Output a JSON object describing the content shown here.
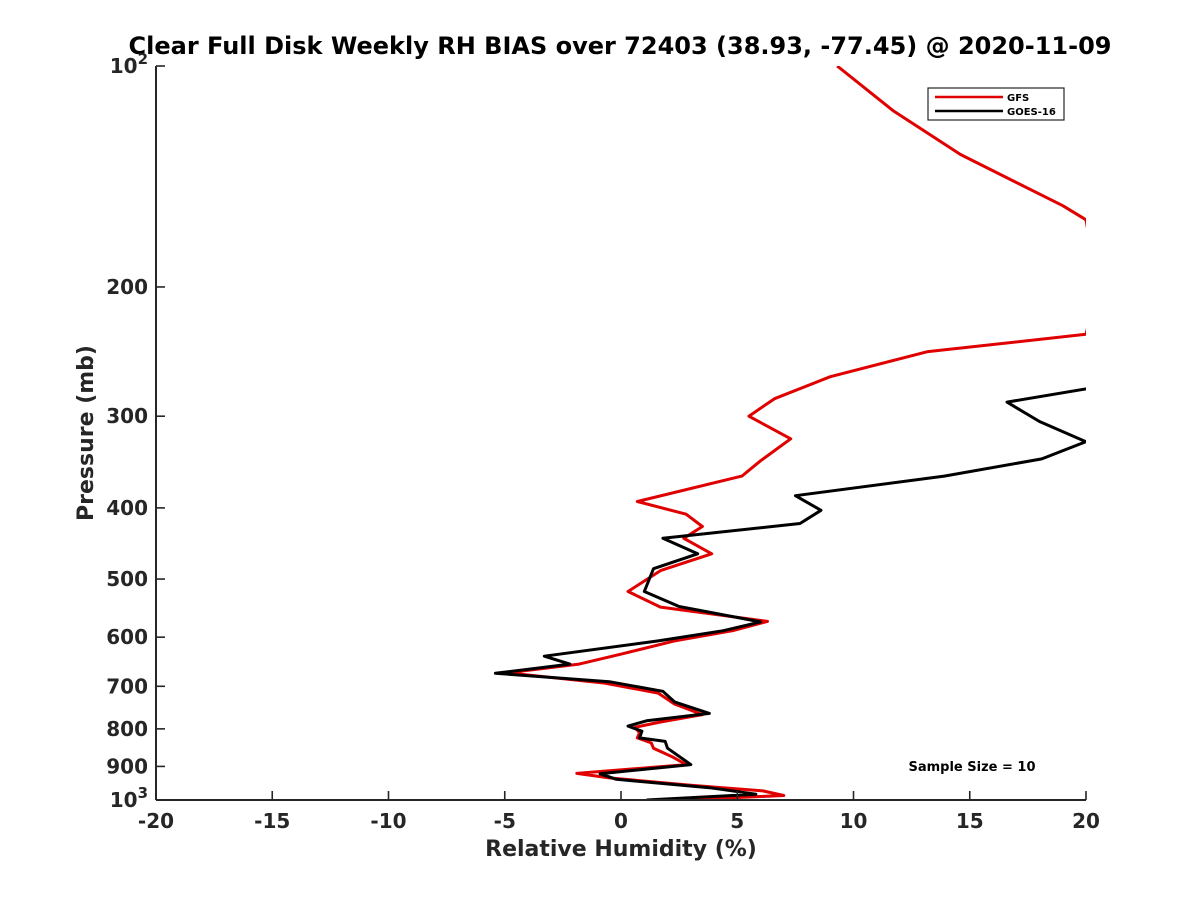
{
  "chart_data": {
    "type": "line",
    "title": "Clear Full Disk Weekly RH BIAS over 72403 (38.93, -77.45) @ 2020-11-09",
    "xlabel": "Relative Humidity (%)",
    "ylabel": "Pressure (mb)",
    "xlim": [
      -20,
      20
    ],
    "ylim": [
      100,
      1000
    ],
    "y_scale": "log",
    "y_reversed": true,
    "grid": false,
    "legend_position": "top-right",
    "x_ticks": [
      "-20",
      "-15",
      "-10",
      "-5",
      "0",
      "5",
      "10",
      "15",
      "20"
    ],
    "y_ticks": [
      {
        "base": "10",
        "exp": "2"
      },
      {
        "base": "200",
        "exp": ""
      },
      {
        "base": "300",
        "exp": ""
      },
      {
        "base": "400",
        "exp": ""
      },
      {
        "base": "500",
        "exp": ""
      },
      {
        "base": "600",
        "exp": ""
      },
      {
        "base": "700",
        "exp": ""
      },
      {
        "base": "800",
        "exp": ""
      },
      {
        "base": "900",
        "exp": ""
      },
      {
        "base": "10",
        "exp": "3"
      }
    ],
    "y_tick_values": [
      100,
      200,
      300,
      400,
      500,
      600,
      700,
      800,
      900,
      1000
    ],
    "annotation": "Sample Size = 10",
    "series": [
      {
        "name": "GFS",
        "color": "#e00000",
        "points": [
          [
            9.3,
            100
          ],
          [
            11.7,
            115
          ],
          [
            14.6,
            132
          ],
          [
            19.0,
            155
          ],
          [
            20.0,
            162
          ],
          [
            20.5,
            200
          ],
          [
            20.0,
            232
          ],
          [
            13.2,
            245
          ],
          [
            9.0,
            265
          ],
          [
            6.6,
            284
          ],
          [
            5.5,
            300
          ],
          [
            7.3,
            322
          ],
          [
            6.0,
            345
          ],
          [
            5.2,
            362
          ],
          [
            0.7,
            392
          ],
          [
            2.8,
            408
          ],
          [
            3.5,
            424
          ],
          [
            2.7,
            440
          ],
          [
            3.9,
            462
          ],
          [
            1.7,
            487
          ],
          [
            0.3,
            520
          ],
          [
            1.7,
            546
          ],
          [
            6.3,
            571
          ],
          [
            4.8,
            588
          ],
          [
            2.3,
            607
          ],
          [
            -0.1,
            634
          ],
          [
            -1.8,
            653
          ],
          [
            -4.9,
            671
          ],
          [
            -0.7,
            693
          ],
          [
            1.6,
            715
          ],
          [
            2.3,
            740
          ],
          [
            3.5,
            765
          ],
          [
            1.7,
            783
          ],
          [
            0.6,
            796
          ],
          [
            0.8,
            810
          ],
          [
            0.7,
            823
          ],
          [
            1.3,
            836
          ],
          [
            1.4,
            850
          ],
          [
            2.2,
            873
          ],
          [
            2.8,
            895
          ],
          [
            -1.9,
            920
          ],
          [
            -0.5,
            933
          ],
          [
            3.0,
            955
          ],
          [
            6.1,
            972
          ],
          [
            7.0,
            986
          ],
          [
            2.5,
            1000
          ]
        ]
      },
      {
        "name": "GOES-16",
        "color": "#000000",
        "points": [
          [
            21.0,
            272
          ],
          [
            16.6,
            287
          ],
          [
            18.0,
            305
          ],
          [
            20.0,
            325
          ],
          [
            18.1,
            343
          ],
          [
            13.9,
            362
          ],
          [
            7.5,
            385
          ],
          [
            8.6,
            403
          ],
          [
            7.7,
            420
          ],
          [
            1.8,
            440
          ],
          [
            3.3,
            462
          ],
          [
            1.4,
            484
          ],
          [
            1.0,
            520
          ],
          [
            2.5,
            545
          ],
          [
            6.0,
            572
          ],
          [
            4.4,
            588
          ],
          [
            1.6,
            607
          ],
          [
            -3.3,
            637
          ],
          [
            -2.2,
            653
          ],
          [
            -5.4,
            672
          ],
          [
            -0.5,
            690
          ],
          [
            1.8,
            711
          ],
          [
            2.3,
            735
          ],
          [
            3.8,
            762
          ],
          [
            1.1,
            780
          ],
          [
            0.3,
            793
          ],
          [
            0.9,
            806
          ],
          [
            0.8,
            823
          ],
          [
            1.9,
            832
          ],
          [
            2.0,
            850
          ],
          [
            3.0,
            895
          ],
          [
            -0.9,
            921
          ],
          [
            -0.2,
            937
          ],
          [
            3.8,
            962
          ],
          [
            5.8,
            982
          ],
          [
            1.1,
            1000
          ]
        ]
      }
    ]
  }
}
